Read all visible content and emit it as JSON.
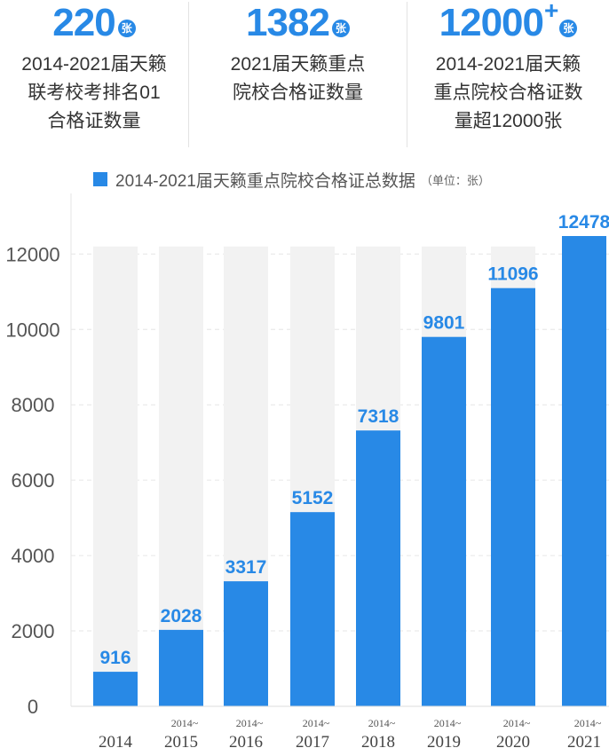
{
  "stats": [
    {
      "value": "220",
      "unit": "张",
      "plus": "",
      "lines": [
        "2014-2021届天籁",
        "联考校考排名01",
        "合格证数量"
      ]
    },
    {
      "value": "1382",
      "unit": "张",
      "plus": "",
      "lines": [
        "2021届天籁重点",
        "院校合格证数量"
      ]
    },
    {
      "value": "12000",
      "unit": "张",
      "plus": "+",
      "lines": [
        "2014-2021届天籁",
        "重点院校合格证数",
        "量超12000张"
      ]
    }
  ],
  "legend": {
    "label": "2014-2021届天籁重点院校合格证总数据",
    "unit_note": "（单位：张）"
  },
  "colors": {
    "bar": "#2889e6",
    "background_bar": "#f2f2f2",
    "value_label": "#2889e6",
    "axis_text": "#555555",
    "grid": "#e6e6e6"
  },
  "chart_data": {
    "type": "bar",
    "categories": [
      {
        "prefix": "",
        "year": "2014"
      },
      {
        "prefix": "2014~",
        "year": "2015"
      },
      {
        "prefix": "2014~",
        "year": "2016"
      },
      {
        "prefix": "2014~",
        "year": "2017"
      },
      {
        "prefix": "2014~",
        "year": "2018"
      },
      {
        "prefix": "2014~",
        "year": "2019"
      },
      {
        "prefix": "2014~",
        "year": "2020"
      },
      {
        "prefix": "2014~",
        "year": "2021"
      }
    ],
    "values": [
      916,
      2028,
      3317,
      5152,
      7318,
      9801,
      11096,
      12478
    ],
    "ylim": [
      0,
      12478
    ],
    "yticks": [
      0,
      2000,
      4000,
      6000,
      8000,
      10000,
      12000
    ],
    "background_bar_value": 12200,
    "grid": true
  }
}
